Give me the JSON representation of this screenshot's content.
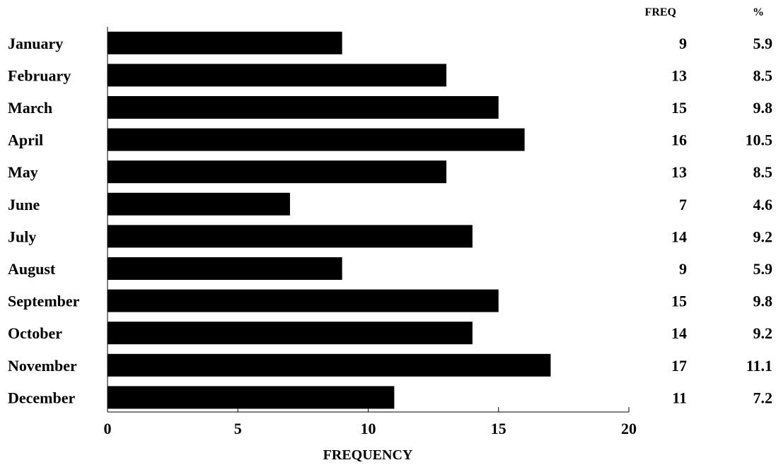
{
  "chart_data": {
    "type": "bar",
    "orientation": "horizontal",
    "categories": [
      "January",
      "February",
      "March",
      "April",
      "May",
      "June",
      "July",
      "August",
      "September",
      "October",
      "November",
      "December"
    ],
    "values": [
      9,
      13,
      15,
      16,
      13,
      7,
      14,
      9,
      15,
      14,
      17,
      11
    ],
    "xlabel": "FREQUENCY",
    "xlim": [
      0,
      20
    ],
    "xticks": [
      0,
      5,
      10,
      15,
      20
    ],
    "grid": false,
    "bar_color": "#000000",
    "table": {
      "freq_header": "FREQ",
      "pct_header": "%",
      "freq": [
        "9",
        "13",
        "15",
        "16",
        "13",
        "7",
        "14",
        "9",
        "15",
        "14",
        "17",
        "11"
      ],
      "pct": [
        "5.9",
        "8.5",
        "9.8",
        "10.5",
        "8.5",
        "4.6",
        "9.2",
        "5.9",
        "9.8",
        "9.2",
        "11.1",
        "7.2"
      ]
    }
  }
}
